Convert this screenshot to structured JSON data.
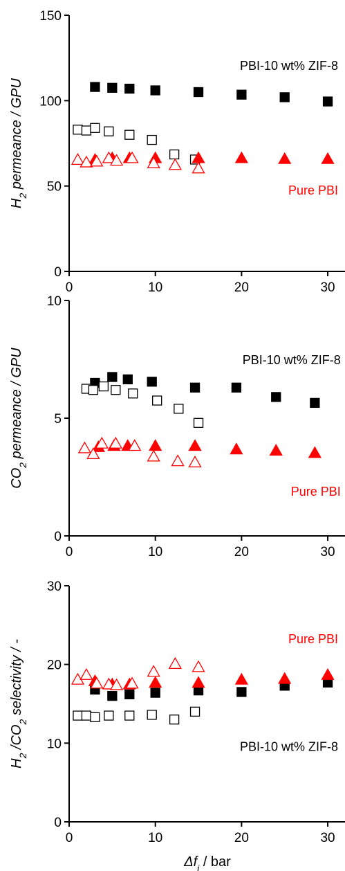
{
  "colors": {
    "pbi_zif8": "#000000",
    "pure_pbi": "#ff0000",
    "axis": "#000000"
  },
  "x_axis": {
    "label_prefix": "Δf",
    "label_subscript": "i",
    "label_suffix": " / bar"
  },
  "chart_data": [
    {
      "type": "scatter",
      "ylabel": {
        "pre": "H",
        "sub": "2",
        "post": " permeance / GPU"
      },
      "xlim": [
        0,
        32
      ],
      "ylim": [
        0,
        150
      ],
      "xticks": [
        0,
        10,
        20,
        30
      ],
      "yticks": [
        0,
        50,
        100,
        150
      ],
      "annotations": [
        {
          "text": "PBI-10 wt% ZIF-8",
          "color": "#000000",
          "x": 31.2,
          "y": 118
        },
        {
          "text": "Pure PBI",
          "color": "#ff0000",
          "x": 31.2,
          "y": 45
        }
      ],
      "series": [
        {
          "marker": "square",
          "filled": true,
          "color": "#000000",
          "points": [
            [
              3,
              108
            ],
            [
              5,
              107.5
            ],
            [
              7,
              107
            ],
            [
              10,
              106
            ],
            [
              15,
              105
            ],
            [
              20,
              103.5
            ],
            [
              25,
              102
            ],
            [
              30,
              99.5
            ]
          ]
        },
        {
          "marker": "square",
          "filled": false,
          "color": "#000000",
          "points": [
            [
              1,
              83
            ],
            [
              2,
              82.5
            ],
            [
              3,
              84
            ],
            [
              4.6,
              82
            ],
            [
              7,
              80
            ],
            [
              9.6,
              77
            ],
            [
              12.2,
              68.5
            ],
            [
              14.6,
              65.5
            ]
          ]
        },
        {
          "marker": "triangle",
          "filled": true,
          "color": "#ff0000",
          "points": [
            [
              3,
              65
            ],
            [
              5,
              66
            ],
            [
              7,
              66
            ],
            [
              10,
              66
            ],
            [
              15,
              66
            ],
            [
              20,
              66
            ],
            [
              25,
              65.5
            ],
            [
              30,
              65.5
            ]
          ]
        },
        {
          "marker": "triangle",
          "filled": false,
          "color": "#ff0000",
          "points": [
            [
              1,
              65
            ],
            [
              2,
              63.5
            ],
            [
              3.2,
              64
            ],
            [
              4.6,
              66
            ],
            [
              5.5,
              64.5
            ],
            [
              7.3,
              66
            ],
            [
              9.8,
              63
            ],
            [
              12.3,
              62
            ],
            [
              15,
              60
            ]
          ]
        }
      ]
    },
    {
      "type": "scatter",
      "ylabel": {
        "pre": "CO",
        "sub": "2",
        "post": " permeance / GPU"
      },
      "xlim": [
        0,
        32
      ],
      "ylim": [
        0,
        10
      ],
      "xticks": [
        0,
        10,
        20,
        30
      ],
      "yticks": [
        0,
        5,
        10
      ],
      "annotations": [
        {
          "text": "PBI-10 wt% ZIF-8",
          "color": "#000000",
          "x": 31.5,
          "y": 7.3
        },
        {
          "text": "Pure PBI",
          "color": "#ff0000",
          "x": 31.5,
          "y": 1.7
        }
      ],
      "series": [
        {
          "marker": "square",
          "filled": true,
          "color": "#000000",
          "points": [
            [
              3,
              6.5
            ],
            [
              5,
              6.75
            ],
            [
              6.8,
              6.65
            ],
            [
              9.6,
              6.55
            ],
            [
              14.6,
              6.3
            ],
            [
              19.4,
              6.3
            ],
            [
              24,
              5.9
            ],
            [
              28.5,
              5.65
            ]
          ]
        },
        {
          "marker": "square",
          "filled": false,
          "color": "#000000",
          "points": [
            [
              2,
              6.25
            ],
            [
              2.8,
              6.2
            ],
            [
              4,
              6.35
            ],
            [
              5.4,
              6.2
            ],
            [
              7.4,
              6.05
            ],
            [
              10.2,
              5.75
            ],
            [
              12.7,
              5.4
            ],
            [
              15,
              4.8
            ]
          ]
        },
        {
          "marker": "triangle",
          "filled": true,
          "color": "#ff0000",
          "points": [
            [
              3.4,
              3.75
            ],
            [
              5.2,
              3.8
            ],
            [
              6.8,
              3.8
            ],
            [
              10,
              3.8
            ],
            [
              14.6,
              3.8
            ],
            [
              19.4,
              3.65
            ],
            [
              24,
              3.6
            ],
            [
              28.5,
              3.5
            ]
          ]
        },
        {
          "marker": "triangle",
          "filled": false,
          "color": "#ff0000",
          "points": [
            [
              1.8,
              3.7
            ],
            [
              2.8,
              3.45
            ],
            [
              3.8,
              3.9
            ],
            [
              5.4,
              3.9
            ],
            [
              7.6,
              3.8
            ],
            [
              9.8,
              3.35
            ],
            [
              12.6,
              3.15
            ],
            [
              14.6,
              3.1
            ]
          ]
        }
      ]
    },
    {
      "type": "scatter",
      "ylabel": {
        "pre": "H",
        "sub": "2",
        "mid": " /CO",
        "sub2": "2",
        "post": " selectivity / -"
      },
      "xlim": [
        0,
        32
      ],
      "ylim": [
        0,
        30
      ],
      "xticks": [
        0,
        10,
        20,
        30
      ],
      "yticks": [
        0,
        10,
        20,
        30
      ],
      "annotations": [
        {
          "text": "Pure PBI",
          "color": "#ff0000",
          "x": 31.2,
          "y": 22.7
        },
        {
          "text": "PBI-10 wt% ZIF-8",
          "color": "#000000",
          "x": 31.2,
          "y": 9
        }
      ],
      "series": [
        {
          "marker": "square",
          "filled": true,
          "color": "#000000",
          "points": [
            [
              3,
              16.8
            ],
            [
              5,
              16
            ],
            [
              7,
              16.2
            ],
            [
              10,
              16.4
            ],
            [
              15,
              16.7
            ],
            [
              20,
              16.5
            ],
            [
              25,
              17.3
            ],
            [
              30,
              17.7
            ]
          ]
        },
        {
          "marker": "square",
          "filled": false,
          "color": "#000000",
          "points": [
            [
              1,
              13.5
            ],
            [
              2,
              13.5
            ],
            [
              3,
              13.3
            ],
            [
              4.6,
              13.5
            ],
            [
              7,
              13.5
            ],
            [
              9.6,
              13.6
            ],
            [
              12.2,
              13
            ],
            [
              14.6,
              14
            ]
          ]
        },
        {
          "marker": "triangle",
          "filled": true,
          "color": "#ff0000",
          "points": [
            [
              3,
              17.8
            ],
            [
              5,
              17.4
            ],
            [
              7,
              17.4
            ],
            [
              10,
              17.6
            ],
            [
              15,
              17.6
            ],
            [
              20,
              18
            ],
            [
              25,
              18.1
            ],
            [
              30,
              18.6
            ]
          ]
        },
        {
          "marker": "triangle",
          "filled": false,
          "color": "#ff0000",
          "points": [
            [
              1,
              18
            ],
            [
              2,
              18.6
            ],
            [
              3.2,
              17.5
            ],
            [
              4.6,
              17.4
            ],
            [
              5.5,
              17.3
            ],
            [
              7.3,
              17.5
            ],
            [
              9.8,
              19
            ],
            [
              12.3,
              20
            ],
            [
              15,
              19.6
            ]
          ]
        }
      ]
    }
  ]
}
